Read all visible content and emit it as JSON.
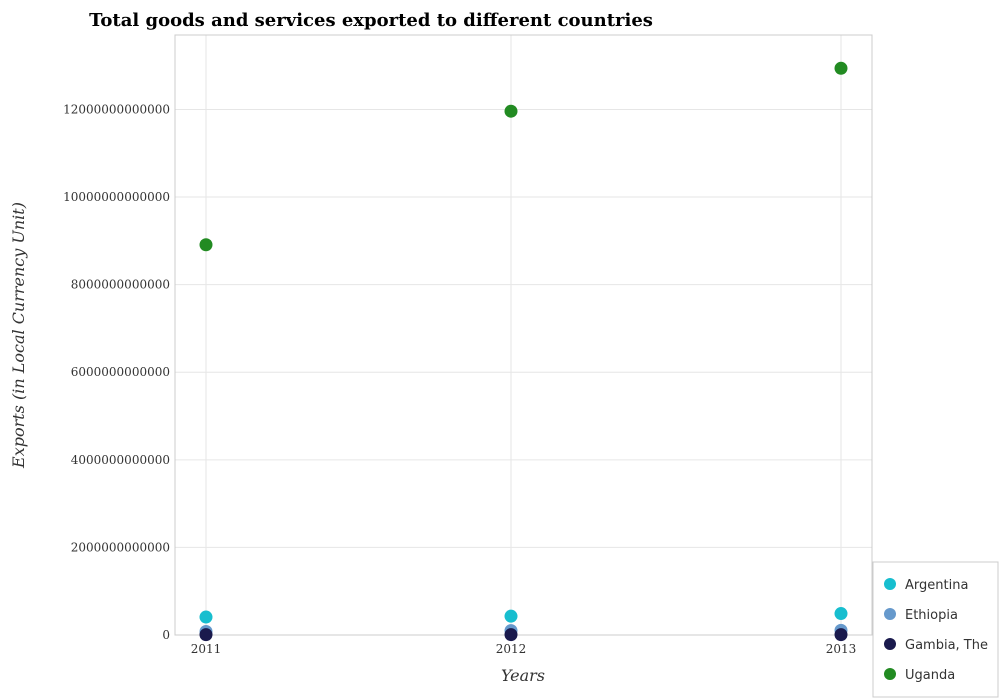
{
  "chart_data": {
    "type": "scatter",
    "title": "Total goods and services exported to different countries",
    "xlabel": "Years",
    "ylabel": "Exports (in Local Currency Unit)",
    "x": [
      "2011",
      "2012",
      "2013"
    ],
    "ylim": [
      0,
      13700000000000
    ],
    "yticks": [
      0,
      2000000000000,
      4000000000000,
      6000000000000,
      8000000000000,
      10000000000000,
      12000000000000
    ],
    "ytick_labels": [
      "0",
      "2000000000000",
      "4000000000000",
      "6000000000000",
      "8000000000000",
      "10000000000000",
      "12000000000000"
    ],
    "grid": true,
    "legend_position": "bottom-right",
    "series": [
      {
        "name": "Argentina",
        "color": "#17becf",
        "values": [
          410000000000,
          430000000000,
          490000000000
        ]
      },
      {
        "name": "Ethiopia",
        "color": "#6699cc",
        "values": [
          80000000000,
          100000000000,
          105000000000
        ]
      },
      {
        "name": "Gambia, The",
        "color": "#1a1a4d",
        "values": [
          8000000000,
          8500000000,
          9000000000
        ]
      },
      {
        "name": "Uganda",
        "color": "#228b22",
        "values": [
          8910000000000,
          11960000000000,
          12940000000000
        ]
      }
    ]
  }
}
